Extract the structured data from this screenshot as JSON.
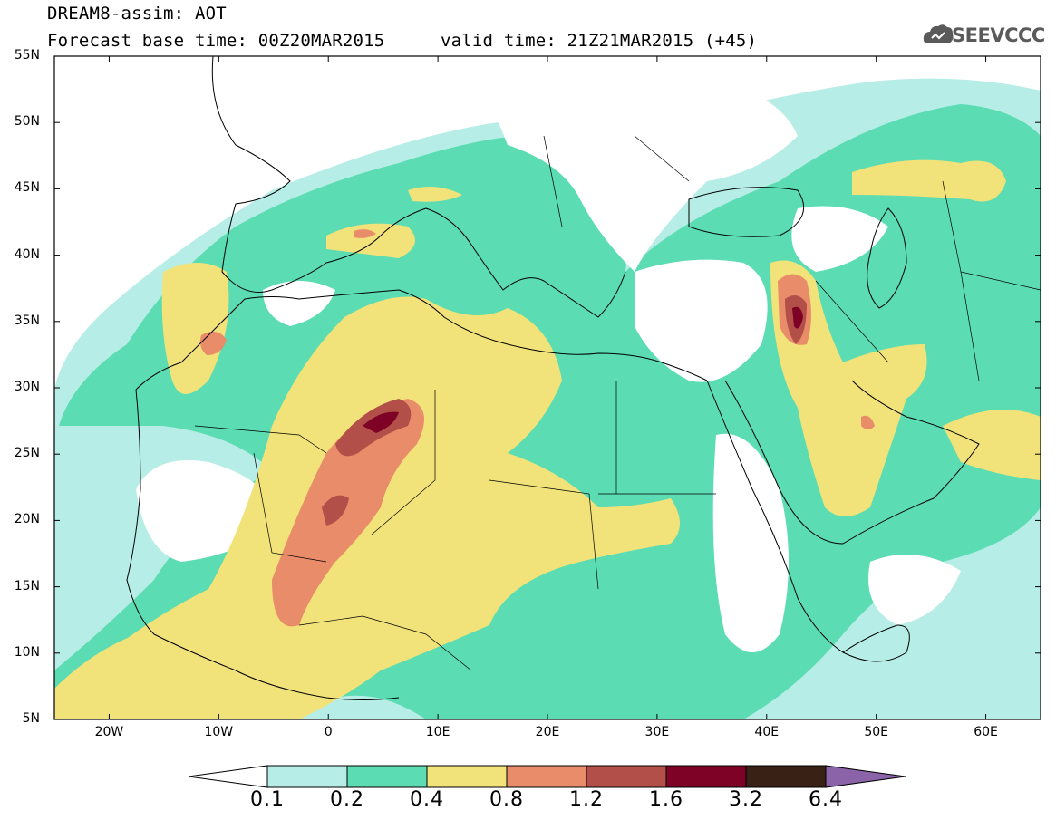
{
  "header": {
    "title_line1": "DREAM8-assim: AOT",
    "title_line2": "Forecast base time: 00Z20MAR2015",
    "valid_time": "valid time: 21Z21MAR2015 (+45)",
    "logo_text": "SEEVCCC"
  },
  "map": {
    "lat_labels": [
      "55N",
      "50N",
      "45N",
      "40N",
      "35N",
      "30N",
      "25N",
      "20N",
      "15N",
      "10N",
      "5N"
    ],
    "lon_labels": [
      "20W",
      "10W",
      "0",
      "10E",
      "20E",
      "30E",
      "40E",
      "50E",
      "60E"
    ],
    "lon_range": [
      -25,
      65
    ],
    "lat_range": [
      5,
      55
    ]
  },
  "colorbar": {
    "levels": [
      "0.1",
      "0.2",
      "0.4",
      "0.8",
      "1.2",
      "1.6",
      "3.2",
      "6.4"
    ],
    "colors": [
      "#b6ede6",
      "#5bdcb2",
      "#f2e27a",
      "#e98c6a",
      "#b34f49",
      "#7d0226",
      "#3a2116",
      "#8b63a8"
    ]
  },
  "colors": {
    "land_outline": "#000000",
    "ocean": "#ffffff",
    "logo_gray": "#5a5a5a"
  }
}
